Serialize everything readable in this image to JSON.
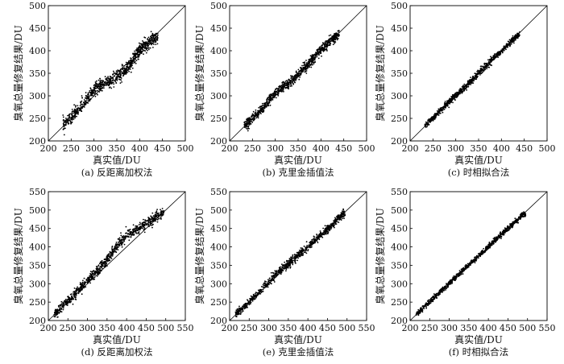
{
  "chart_data": [
    {
      "type": "scatter",
      "caption": "(a) 反距离加权法",
      "xlabel": "真实值/DU",
      "ylabel": "臭氧总量修复结果/DU",
      "xlim": [
        200,
        500
      ],
      "ylim": [
        200,
        500
      ],
      "xticks": [
        "200",
        "250",
        "300",
        "350",
        "400",
        "450",
        "500"
      ],
      "yticks": [
        "200",
        "250",
        "300",
        "350",
        "400",
        "450",
        "500"
      ],
      "reference_line": "y=x",
      "data_x_range": [
        232,
        440
      ],
      "spread": "wide, bulging above the line at 300–330 DU",
      "series": [
        {
          "marker_color": "#000000",
          "points": [
            [
              236,
              238
            ],
            [
              260,
              262
            ],
            [
              285,
              292
            ],
            [
              305,
              318
            ],
            [
              320,
              325
            ],
            [
              340,
              335
            ],
            [
              360,
              350
            ],
            [
              380,
              370
            ],
            [
              400,
              402
            ],
            [
              420,
              418
            ],
            [
              435,
              430
            ]
          ]
        }
      ]
    },
    {
      "type": "scatter",
      "caption": "(b) 克里金插值法",
      "xlabel": "真实值/DU",
      "ylabel": "臭氧总量修复结果/DU",
      "xlim": [
        200,
        500
      ],
      "ylim": [
        200,
        500
      ],
      "xticks": [
        "200",
        "250",
        "300",
        "350",
        "400",
        "450",
        "500"
      ],
      "yticks": [
        "200",
        "250",
        "300",
        "350",
        "400",
        "450",
        "500"
      ],
      "reference_line": "y=x",
      "data_x_range": [
        232,
        440
      ],
      "spread": "moderate",
      "series": [
        {
          "marker_color": "#000000",
          "points": [
            [
              236,
              237
            ],
            [
              260,
              259
            ],
            [
              285,
              288
            ],
            [
              305,
              310
            ],
            [
              330,
              328
            ],
            [
              350,
              347
            ],
            [
              370,
              368
            ],
            [
              395,
              396
            ],
            [
              420,
              421
            ],
            [
              435,
              433
            ]
          ]
        }
      ]
    },
    {
      "type": "scatter",
      "caption": "(c) 时相拟合法",
      "xlabel": "真实值/DU",
      "ylabel": "臭氧总量修复结果/DU",
      "xlim": [
        200,
        500
      ],
      "ylim": [
        200,
        500
      ],
      "xticks": [
        "200",
        "250",
        "300",
        "350",
        "400",
        "450",
        "500"
      ],
      "yticks": [
        "200",
        "250",
        "300",
        "350",
        "400",
        "450",
        "500"
      ],
      "reference_line": "y=x",
      "data_x_range": [
        232,
        440
      ],
      "spread": "narrow",
      "series": [
        {
          "marker_color": "#000000",
          "points": [
            [
              236,
              237
            ],
            [
              260,
              261
            ],
            [
              285,
              286
            ],
            [
              310,
              310
            ],
            [
              335,
              334
            ],
            [
              360,
              360
            ],
            [
              385,
              386
            ],
            [
              410,
              409
            ],
            [
              435,
              434
            ]
          ]
        }
      ]
    },
    {
      "type": "scatter",
      "caption": "(d) 反距离加权法",
      "xlabel": "真实值/DU",
      "ylabel": "臭氧总量修复结果/DU",
      "xlim": [
        200,
        550
      ],
      "ylim": [
        200,
        550
      ],
      "xticks": [
        "200",
        "250",
        "300",
        "350",
        "400",
        "450",
        "500",
        "550"
      ],
      "yticks": [
        "200",
        "250",
        "300",
        "350",
        "400",
        "450",
        "500",
        "550"
      ],
      "reference_line": "y=x",
      "data_x_range": [
        215,
        495
      ],
      "spread": "wide, bulging above the line at 360–430 DU",
      "series": [
        {
          "marker_color": "#000000",
          "points": [
            [
              218,
              219
            ],
            [
              250,
              252
            ],
            [
              280,
              285
            ],
            [
              310,
              318
            ],
            [
              340,
              350
            ],
            [
              370,
              395
            ],
            [
              400,
              430
            ],
            [
              430,
              450
            ],
            [
              460,
              470
            ],
            [
              490,
              492
            ]
          ]
        }
      ]
    },
    {
      "type": "scatter",
      "caption": "(e) 克里金插值法",
      "xlabel": "真实值/DU",
      "ylabel": "臭氧总量修复结果/DU",
      "xlim": [
        200,
        550
      ],
      "ylim": [
        200,
        550
      ],
      "xticks": [
        "200",
        "250",
        "300",
        "350",
        "400",
        "450",
        "500",
        "550"
      ],
      "yticks": [
        "200",
        "250",
        "300",
        "350",
        "400",
        "450",
        "500",
        "550"
      ],
      "reference_line": "y=x",
      "data_x_range": [
        215,
        495
      ],
      "spread": "moderate",
      "series": [
        {
          "marker_color": "#000000",
          "points": [
            [
              218,
              219
            ],
            [
              250,
              250
            ],
            [
              290,
              295
            ],
            [
              330,
              335
            ],
            [
              370,
              372
            ],
            [
              410,
              410
            ],
            [
              450,
              448
            ],
            [
              490,
              490
            ]
          ]
        }
      ]
    },
    {
      "type": "scatter",
      "caption": "(f) 时相拟合法",
      "xlabel": "真实值/DU",
      "ylabel": "臭氧总量修复结果/DU",
      "xlim": [
        200,
        550
      ],
      "ylim": [
        200,
        550
      ],
      "xticks": [
        "200",
        "250",
        "300",
        "350",
        "400",
        "450",
        "500",
        "550"
      ],
      "yticks": [
        "200",
        "250",
        "300",
        "350",
        "400",
        "450",
        "500",
        "550"
      ],
      "reference_line": "y=x",
      "data_x_range": [
        215,
        495
      ],
      "spread": "narrow",
      "series": [
        {
          "marker_color": "#000000",
          "points": [
            [
              218,
              218
            ],
            [
              250,
              251
            ],
            [
              290,
              291
            ],
            [
              330,
              331
            ],
            [
              370,
              370
            ],
            [
              410,
              411
            ],
            [
              450,
              450
            ],
            [
              490,
              489
            ]
          ]
        }
      ]
    }
  ]
}
